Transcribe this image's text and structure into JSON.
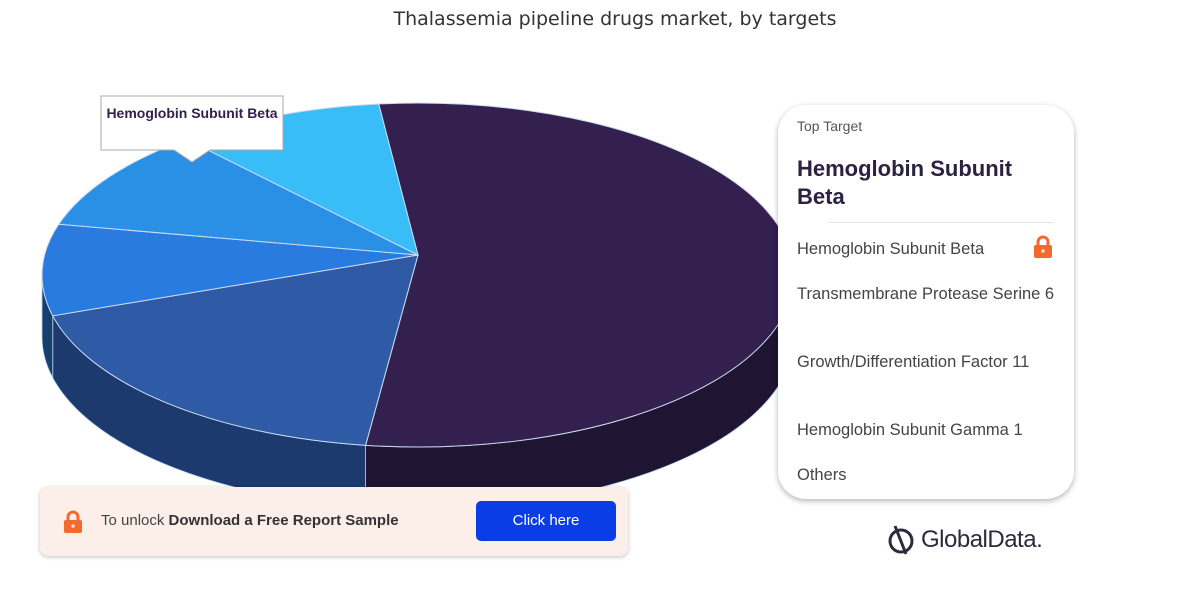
{
  "chart_data": {
    "type": "pie",
    "title": "Thalassemia pipeline drugs market, by targets",
    "style": "3d",
    "slices": [
      {
        "label": "Hemoglobin Subunit Beta",
        "value": 54,
        "color": "#33204f",
        "side": "#1f1431"
      },
      {
        "label": "Transmembrane Protease Serine 6",
        "value": 19,
        "color": "#2f5aa6",
        "side": "#1c3a6e"
      },
      {
        "label": "Growth/Differentiation Factor 11",
        "value": 8.6,
        "color": "#2a7be0",
        "side": "#163f6e"
      },
      {
        "label": "Hemoglobin Subunit Gamma 1",
        "value": 9.7,
        "color": "#2a90e6",
        "side": "#0f3a5c"
      },
      {
        "label": "Others",
        "value": 8.9,
        "color": "#38bdf8",
        "side": "#134f68"
      }
    ],
    "callout": "Hemoglobin Subunit Beta"
  },
  "card": {
    "top_label": "Top Target",
    "top_value": "Hemoglobin Subunit Beta",
    "items": [
      "Hemoglobin Subunit Beta",
      "Transmembrane Protease Serine 6",
      "Growth/Differentiation Factor 11",
      "Hemoglobin Subunit Gamma 1",
      "Others"
    ],
    "lock_icon": "lock-icon",
    "lock_color": "#f26a2e"
  },
  "banner": {
    "prefix": "To unlock ",
    "bold": "Download a Free Report Sample",
    "button": "Click here",
    "button_color": "#0b3de6"
  },
  "brand": "GlobalData."
}
